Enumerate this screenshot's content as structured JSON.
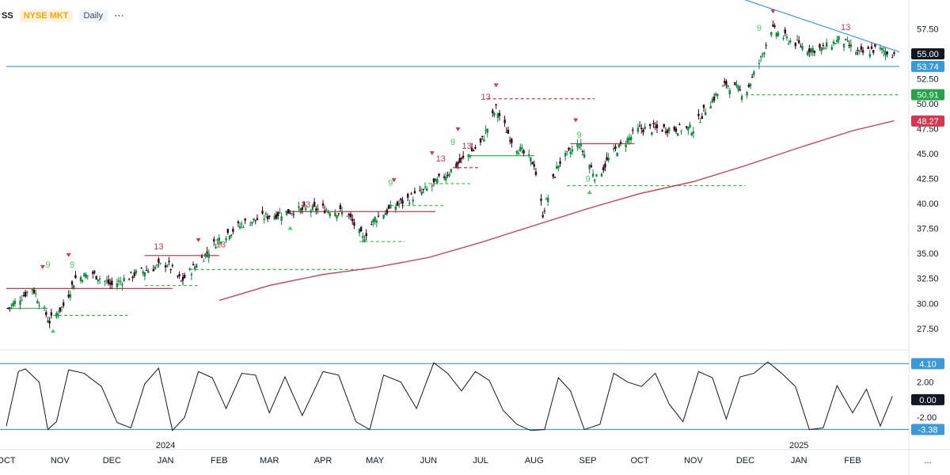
{
  "header": {
    "symbol": "SS",
    "exchange": "NYSE MKT",
    "interval": "Daily",
    "menu_icon": "ellipsis-icon"
  },
  "colors": {
    "up": "#0d8a3e",
    "down": "#3a0014",
    "ma": "#d6364f",
    "trend": "#3a9ad9",
    "green_level": "#2fbf4a",
    "red_level": "#d6364f",
    "setup_green": "#3fd15a",
    "setup_red": "#d6364f",
    "osc": "#131722",
    "osc_level": "#3a9ad9",
    "price_tag_black": "#131722",
    "price_tag_blue": "#3a9ad9",
    "price_tag_green": "#22a447",
    "price_tag_red": "#d6364f"
  },
  "bottom_menu": "...",
  "chart_data": [
    {
      "type": "candlestick",
      "title": "",
      "y_ticks": [
        "57.50",
        "52.50",
        "50.00",
        "47.50",
        "45.00",
        "42.50",
        "40.00",
        "37.50",
        "35.00",
        "32.50",
        "30.00",
        "27.50"
      ],
      "y_tick_values": [
        57.5,
        52.5,
        50.0,
        47.5,
        45.0,
        42.5,
        40.0,
        37.5,
        35.0,
        32.5,
        30.0,
        27.5
      ],
      "ylim": [
        25.5,
        60.0
      ],
      "x_range": [
        "2023-10-01",
        "2025-02-28"
      ],
      "price_tags": [
        {
          "label": "55.00",
          "value": 55.0,
          "style": "black"
        },
        {
          "label": "53.74",
          "value": 53.74,
          "style": "blue"
        },
        {
          "label": "50.91",
          "value": 50.91,
          "style": "green"
        },
        {
          "label": "48.27",
          "value": 48.27,
          "style": "red"
        }
      ],
      "series": [
        {
          "name": "",
          "kind": "close",
          "x": [
            "2023-10-02",
            "2023-10-16",
            "2023-10-26",
            "2023-11-03",
            "2023-11-10",
            "2023-11-20",
            "2023-12-01",
            "2023-12-15",
            "2024-01-02",
            "2024-01-10",
            "2024-01-22",
            "2024-02-01",
            "2024-02-15",
            "2024-03-01",
            "2024-03-15",
            "2024-04-01",
            "2024-04-15",
            "2024-04-24",
            "2024-05-01",
            "2024-05-15",
            "2024-06-01",
            "2024-06-15",
            "2024-07-01",
            "2024-07-10",
            "2024-07-20",
            "2024-08-01",
            "2024-08-06",
            "2024-08-15",
            "2024-08-27",
            "2024-09-06",
            "2024-09-15",
            "2024-10-01",
            "2024-10-15",
            "2024-11-01",
            "2024-11-10",
            "2024-11-20",
            "2024-12-01",
            "2024-12-10",
            "2024-12-16",
            "2024-12-25",
            "2025-01-06",
            "2025-01-15",
            "2025-01-25",
            "2025-02-05",
            "2025-02-15",
            "2025-02-25"
          ],
          "y": [
            29.5,
            31.6,
            28.2,
            29.8,
            32.5,
            33.0,
            31.8,
            33.0,
            34.0,
            32.2,
            34.5,
            36.5,
            38.0,
            38.8,
            39.3,
            39.5,
            39.0,
            36.5,
            38.5,
            40.0,
            41.5,
            43.5,
            46.0,
            49.5,
            46.0,
            44.0,
            39.0,
            44.0,
            46.0,
            42.5,
            45.0,
            47.5,
            47.5,
            47.5,
            50.0,
            52.0,
            51.0,
            54.5,
            57.5,
            56.5,
            55.5,
            55.5,
            56.5,
            55.0,
            55.5,
            55.0
          ]
        },
        {
          "name": "",
          "kind": "moving_average",
          "x": [
            "2024-02-01",
            "2024-03-01",
            "2024-04-01",
            "2024-05-01",
            "2024-06-01",
            "2024-07-01",
            "2024-08-01",
            "2024-09-01",
            "2024-10-01",
            "2024-11-01",
            "2024-12-01",
            "2025-01-01",
            "2025-02-01",
            "2025-02-25"
          ],
          "y": [
            30.3,
            31.8,
            32.9,
            33.6,
            34.6,
            36.1,
            37.8,
            39.5,
            41.0,
            42.2,
            43.8,
            45.6,
            47.3,
            48.3
          ]
        },
        {
          "name": "",
          "kind": "trendline",
          "x": [
            "2024-12-01",
            "2025-02-28"
          ],
          "y": [
            60.5,
            55.2
          ]
        }
      ],
      "horizontal_levels": [
        {
          "value": 53.74,
          "from": "2023-10-01",
          "to": "2025-02-28",
          "style": "solid",
          "color": "trend"
        },
        {
          "value": 31.5,
          "from": "2023-10-01",
          "to": "2024-01-05",
          "style": "solid",
          "color": "red_level"
        },
        {
          "value": 29.5,
          "from": "2023-10-01",
          "to": "2023-10-25",
          "style": "solid",
          "color": "green_level"
        },
        {
          "value": 28.8,
          "from": "2023-10-28",
          "to": "2023-12-10",
          "style": "dashed",
          "color": "green_level"
        },
        {
          "value": 34.8,
          "from": "2023-12-20",
          "to": "2024-02-01",
          "style": "solid",
          "color": "red_level"
        },
        {
          "value": 31.8,
          "from": "2023-12-20",
          "to": "2024-01-20",
          "style": "dashed",
          "color": "green_level"
        },
        {
          "value": 33.4,
          "from": "2024-01-15",
          "to": "2024-04-25",
          "style": "dashed",
          "color": "green_level"
        },
        {
          "value": 39.2,
          "from": "2024-03-10",
          "to": "2024-06-05",
          "style": "solid",
          "color": "red_level"
        },
        {
          "value": 36.2,
          "from": "2024-04-22",
          "to": "2024-05-18",
          "style": "dashed",
          "color": "green_level"
        },
        {
          "value": 39.8,
          "from": "2024-05-10",
          "to": "2024-06-10",
          "style": "dashed",
          "color": "green_level"
        },
        {
          "value": 42.0,
          "from": "2024-06-01",
          "to": "2024-06-25",
          "style": "dashed",
          "color": "green_level"
        },
        {
          "value": 44.8,
          "from": "2024-06-25",
          "to": "2024-08-01",
          "style": "solid",
          "color": "green_level"
        },
        {
          "value": 43.6,
          "from": "2024-06-15",
          "to": "2024-07-01",
          "style": "dashed",
          "color": "red_level"
        },
        {
          "value": 50.5,
          "from": "2024-07-05",
          "to": "2024-09-05",
          "style": "dashed",
          "color": "red_level"
        },
        {
          "value": 46.0,
          "from": "2024-08-22",
          "to": "2024-09-28",
          "style": "solid",
          "color": "red_level"
        },
        {
          "value": 41.8,
          "from": "2024-08-20",
          "to": "2024-12-01",
          "style": "dashed",
          "color": "green_level"
        },
        {
          "value": 50.9,
          "from": "2024-12-01",
          "to": "2025-02-28",
          "style": "dashed",
          "color": "green_level"
        }
      ],
      "annotations": [
        {
          "text": "9",
          "x": "2023-10-25",
          "y": 33.6,
          "color": "setup_green"
        },
        {
          "text": "9",
          "x": "2023-11-08",
          "y": 33.6,
          "color": "setup_green"
        },
        {
          "text": "13",
          "x": "2023-12-28",
          "y": 35.4,
          "color": "setup_red"
        },
        {
          "text": "13",
          "x": "2024-02-02",
          "y": 35.6,
          "color": "setup_red"
        },
        {
          "text": "13",
          "x": "2024-03-22",
          "y": 39.6,
          "color": "setup_red"
        },
        {
          "text": "9",
          "x": "2024-05-10",
          "y": 41.8,
          "color": "setup_green"
        },
        {
          "text": "13",
          "x": "2024-06-08",
          "y": 44.2,
          "color": "setup_red"
        },
        {
          "text": "9",
          "x": "2024-06-15",
          "y": 45.9,
          "color": "setup_green"
        },
        {
          "text": "13",
          "x": "2024-06-23",
          "y": 45.5,
          "color": "setup_red"
        },
        {
          "text": "13",
          "x": "2024-07-04",
          "y": 50.4,
          "color": "setup_red"
        },
        {
          "text": "9",
          "x": "2024-08-27",
          "y": 46.6,
          "color": "setup_green"
        },
        {
          "text": "9",
          "x": "2024-09-01",
          "y": 42.2,
          "color": "setup_green"
        },
        {
          "text": "9",
          "x": "2024-12-09",
          "y": 57.3,
          "color": "setup_green"
        },
        {
          "text": "13",
          "x": "2025-01-28",
          "y": 57.4,
          "color": "setup_red"
        }
      ],
      "markers": [
        {
          "x": "2023-10-22",
          "y": 33.6,
          "dir": "down"
        },
        {
          "x": "2023-11-06",
          "y": 34.8,
          "dir": "down"
        },
        {
          "x": "2023-10-28",
          "y": 27.3,
          "dir": "up"
        },
        {
          "x": "2024-01-20",
          "y": 36.3,
          "dir": "down"
        },
        {
          "x": "2024-03-13",
          "y": 37.6,
          "dir": "up"
        },
        {
          "x": "2024-05-12",
          "y": 42.3,
          "dir": "down"
        },
        {
          "x": "2024-06-03",
          "y": 45.0,
          "dir": "down"
        },
        {
          "x": "2024-06-18",
          "y": 47.4,
          "dir": "down"
        },
        {
          "x": "2024-07-10",
          "y": 51.8,
          "dir": "down"
        },
        {
          "x": "2024-08-25",
          "y": 48.3,
          "dir": "down"
        },
        {
          "x": "2024-09-02",
          "y": 41.2,
          "dir": "up"
        },
        {
          "x": "2024-12-17",
          "y": 59.2,
          "dir": "down"
        }
      ]
    },
    {
      "type": "line",
      "title": "",
      "y_ticks": [
        "2.00",
        "-2.00"
      ],
      "y_tick_values": [
        2.0,
        -2.0
      ],
      "ylim": [
        -4.6,
        5.3
      ],
      "price_tags": [
        {
          "label": "4.10",
          "value": 4.1,
          "style": "blue"
        },
        {
          "label": "0.00",
          "value": 0.0,
          "style": "black"
        },
        {
          "label": "-3.38",
          "value": -3.38,
          "style": "blue"
        }
      ],
      "levels": [
        4.1,
        -3.38
      ],
      "series": [
        {
          "name": "",
          "x": [
            "2023-10-01",
            "2023-10-08",
            "2023-10-12",
            "2023-10-20",
            "2023-10-25",
            "2023-10-30",
            "2023-11-06",
            "2023-11-15",
            "2023-11-25",
            "2023-12-04",
            "2023-12-12",
            "2023-12-20",
            "2023-12-28",
            "2024-01-05",
            "2024-01-12",
            "2024-01-20",
            "2024-01-28",
            "2024-02-05",
            "2024-02-14",
            "2024-02-22",
            "2024-03-01",
            "2024-03-10",
            "2024-03-20",
            "2024-04-01",
            "2024-04-10",
            "2024-04-20",
            "2024-04-28",
            "2024-05-06",
            "2024-05-16",
            "2024-05-25",
            "2024-06-04",
            "2024-06-12",
            "2024-06-20",
            "2024-06-28",
            "2024-07-06",
            "2024-07-14",
            "2024-07-22",
            "2024-07-30",
            "2024-08-07",
            "2024-08-15",
            "2024-08-22",
            "2024-08-30",
            "2024-09-08",
            "2024-09-16",
            "2024-09-24",
            "2024-10-02",
            "2024-10-10",
            "2024-10-18",
            "2024-10-26",
            "2024-11-04",
            "2024-11-12",
            "2024-11-20",
            "2024-11-28",
            "2024-12-06",
            "2024-12-14",
            "2024-12-22",
            "2024-12-30",
            "2025-01-07",
            "2025-01-15",
            "2025-01-23",
            "2025-02-01",
            "2025-02-09",
            "2025-02-17",
            "2025-02-24"
          ],
          "y": [
            -3.0,
            3.2,
            3.5,
            2.0,
            -3.4,
            -2.5,
            3.4,
            3.0,
            1.5,
            -2.6,
            -3.2,
            1.8,
            3.6,
            -3.5,
            -2.0,
            3.2,
            2.5,
            -1.0,
            3.0,
            2.8,
            -1.5,
            2.6,
            -1.8,
            3.2,
            2.8,
            -2.5,
            -3.4,
            2.8,
            2.0,
            -1.0,
            4.2,
            3.0,
            1.0,
            3.2,
            2.2,
            -1.2,
            -2.8,
            -3.5,
            -3.4,
            2.5,
            1.0,
            -3.4,
            -2.8,
            3.0,
            2.0,
            1.5,
            3.0,
            -0.5,
            -2.5,
            3.2,
            2.5,
            -2.2,
            2.6,
            3.0,
            4.3,
            3.0,
            1.5,
            -3.4,
            -3.2,
            1.6,
            -1.5,
            1.2,
            -3.0,
            0.4
          ]
        }
      ]
    }
  ],
  "x_axis": {
    "labels": [
      {
        "text": "OCT",
        "date": "2023-10-01"
      },
      {
        "text": "NOV",
        "date": "2023-11-01"
      },
      {
        "text": "DEC",
        "date": "2023-12-01"
      },
      {
        "text": "JAN",
        "date": "2024-01-01"
      },
      {
        "text": "FEB",
        "date": "2024-02-01"
      },
      {
        "text": "MAR",
        "date": "2024-03-01"
      },
      {
        "text": "APR",
        "date": "2024-04-01"
      },
      {
        "text": "MAY",
        "date": "2024-05-01"
      },
      {
        "text": "JUN",
        "date": "2024-06-01"
      },
      {
        "text": "JUL",
        "date": "2024-07-01"
      },
      {
        "text": "AUG",
        "date": "2024-08-01"
      },
      {
        "text": "SEP",
        "date": "2024-09-01"
      },
      {
        "text": "OCT",
        "date": "2024-10-01"
      },
      {
        "text": "NOV",
        "date": "2024-11-01"
      },
      {
        "text": "DEC",
        "date": "2024-12-01"
      },
      {
        "text": "JAN",
        "date": "2025-01-01"
      },
      {
        "text": "FEB",
        "date": "2025-02-01"
      }
    ],
    "year_labels": [
      {
        "text": "2024",
        "date": "2024-01-01"
      },
      {
        "text": "2025",
        "date": "2025-01-01"
      }
    ]
  }
}
